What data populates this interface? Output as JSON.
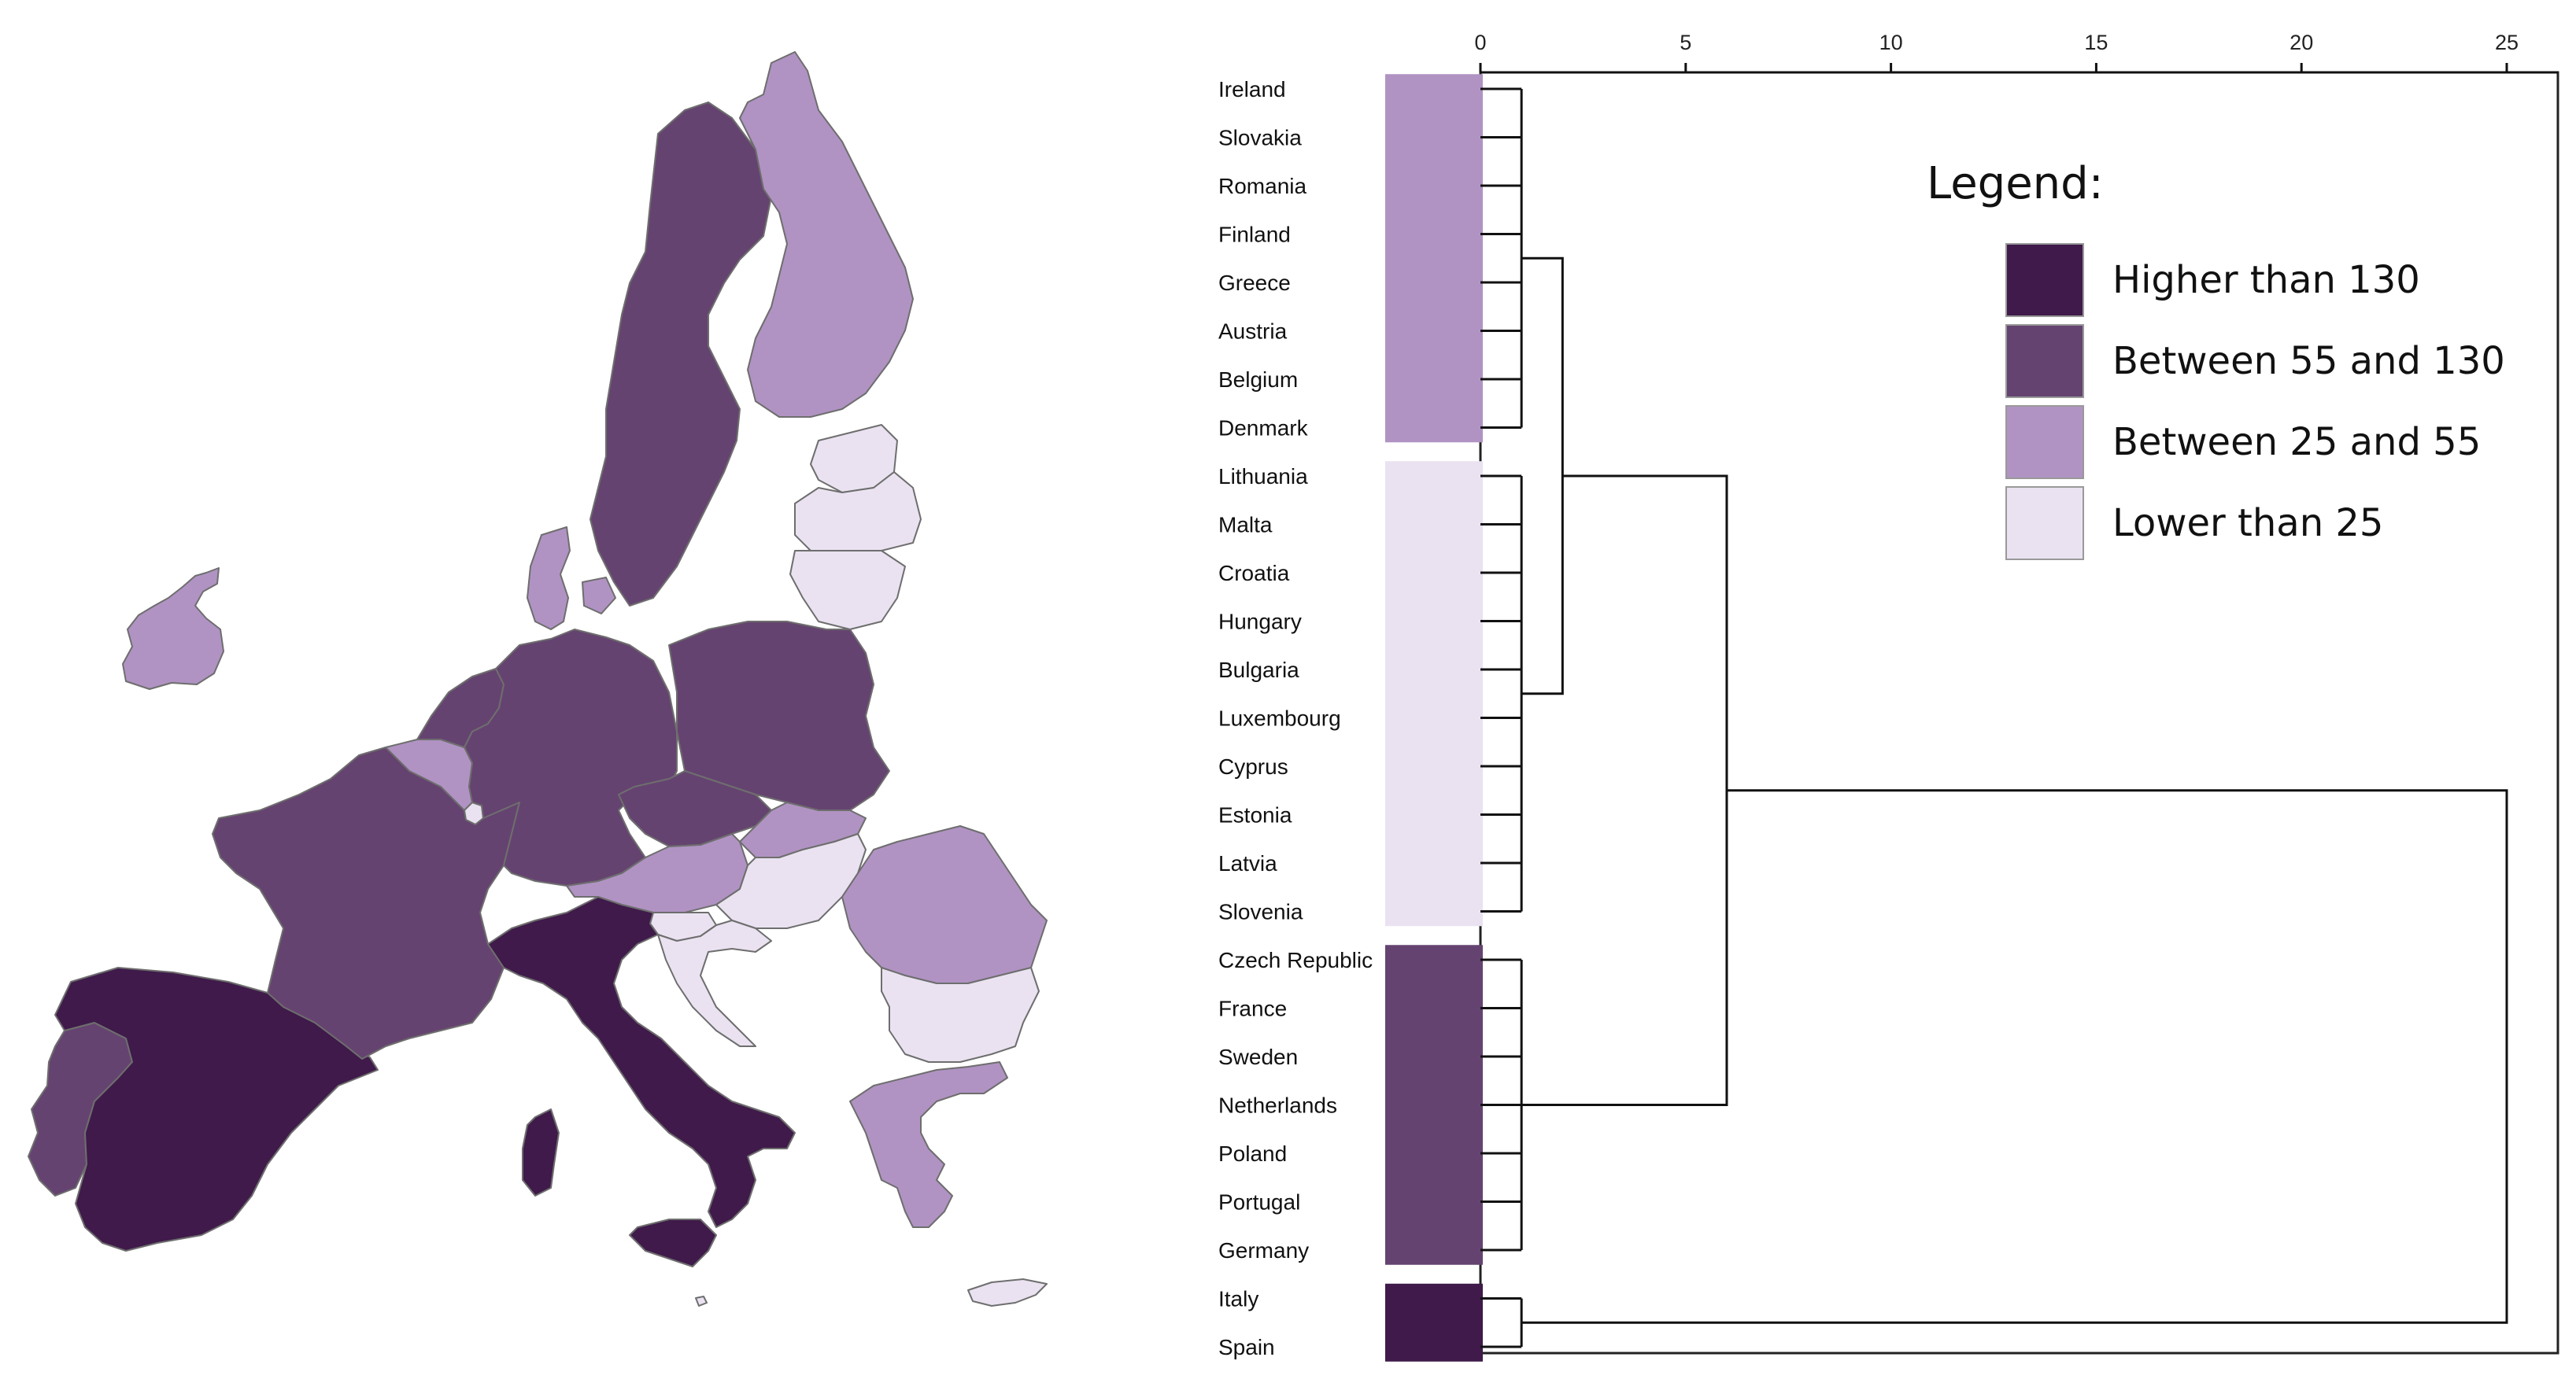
{
  "colors": {
    "higher_than_130": "#3f1a4a",
    "between_55_and_130": "#654370",
    "between_25_and_55": "#b093c3",
    "lower_than_25": "#eae2f1",
    "border": "#6e6e6e",
    "line": "#111111"
  },
  "map": {
    "countries": [
      {
        "name": "Ireland",
        "class": "between_25_and_55"
      },
      {
        "name": "Portugal",
        "class": "between_55_and_130"
      },
      {
        "name": "Spain",
        "class": "higher_than_130"
      },
      {
        "name": "France",
        "class": "between_55_and_130"
      },
      {
        "name": "Italy",
        "class": "higher_than_130"
      },
      {
        "name": "Belgium",
        "class": "between_25_and_55"
      },
      {
        "name": "Netherlands",
        "class": "between_55_and_130"
      },
      {
        "name": "Luxembourg",
        "class": "lower_than_25"
      },
      {
        "name": "Germany",
        "class": "between_55_and_130"
      },
      {
        "name": "Denmark",
        "class": "between_25_and_55"
      },
      {
        "name": "Sweden",
        "class": "between_55_and_130"
      },
      {
        "name": "Finland",
        "class": "between_25_and_55"
      },
      {
        "name": "Estonia",
        "class": "lower_than_25"
      },
      {
        "name": "Latvia",
        "class": "lower_than_25"
      },
      {
        "name": "Lithuania",
        "class": "lower_than_25"
      },
      {
        "name": "Poland",
        "class": "between_55_and_130"
      },
      {
        "name": "Czech Republic",
        "class": "between_55_and_130"
      },
      {
        "name": "Slovakia",
        "class": "between_25_and_55"
      },
      {
        "name": "Austria",
        "class": "between_25_and_55"
      },
      {
        "name": "Hungary",
        "class": "lower_than_25"
      },
      {
        "name": "Slovenia",
        "class": "lower_than_25"
      },
      {
        "name": "Croatia",
        "class": "lower_than_25"
      },
      {
        "name": "Romania",
        "class": "between_25_and_55"
      },
      {
        "name": "Bulgaria",
        "class": "lower_than_25"
      },
      {
        "name": "Greece",
        "class": "between_25_and_55"
      },
      {
        "name": "Cyprus",
        "class": "lower_than_25"
      },
      {
        "name": "Malta",
        "class": "lower_than_25"
      }
    ]
  },
  "dendrogram": {
    "axis": {
      "ticks": [
        "0",
        "5",
        "10",
        "15",
        "20",
        "25"
      ],
      "min": 0,
      "max": 25
    },
    "leaves": [
      {
        "name": "Ireland",
        "class": "between_25_and_55"
      },
      {
        "name": "Slovakia",
        "class": "between_25_and_55"
      },
      {
        "name": "Romania",
        "class": "between_25_and_55"
      },
      {
        "name": "Finland",
        "class": "between_25_and_55"
      },
      {
        "name": "Greece",
        "class": "between_25_and_55"
      },
      {
        "name": "Austria",
        "class": "between_25_and_55"
      },
      {
        "name": "Belgium",
        "class": "between_25_and_55"
      },
      {
        "name": "Denmark",
        "class": "between_25_and_55"
      },
      {
        "name": "Lithuania",
        "class": "lower_than_25"
      },
      {
        "name": "Malta",
        "class": "lower_than_25"
      },
      {
        "name": "Croatia",
        "class": "lower_than_25"
      },
      {
        "name": "Hungary",
        "class": "lower_than_25"
      },
      {
        "name": "Bulgaria",
        "class": "lower_than_25"
      },
      {
        "name": "Luxembourg",
        "class": "lower_than_25"
      },
      {
        "name": "Cyprus",
        "class": "lower_than_25"
      },
      {
        "name": "Estonia",
        "class": "lower_than_25"
      },
      {
        "name": "Latvia",
        "class": "lower_than_25"
      },
      {
        "name": "Slovenia",
        "class": "lower_than_25"
      },
      {
        "name": "Czech Republic",
        "class": "between_55_and_130"
      },
      {
        "name": "France",
        "class": "between_55_and_130"
      },
      {
        "name": "Sweden",
        "class": "between_55_and_130"
      },
      {
        "name": "Netherlands",
        "class": "between_55_and_130"
      },
      {
        "name": "Poland",
        "class": "between_55_and_130"
      },
      {
        "name": "Portugal",
        "class": "between_55_and_130"
      },
      {
        "name": "Germany",
        "class": "between_55_and_130"
      },
      {
        "name": "Italy",
        "class": "higher_than_130"
      },
      {
        "name": "Spain",
        "class": "higher_than_130"
      }
    ],
    "clusters": [
      {
        "leaves": [
          "Ireland",
          "Slovakia",
          "Romania",
          "Finland",
          "Greece",
          "Austria",
          "Belgium",
          "Denmark"
        ],
        "height": 1
      },
      {
        "leaves": [
          "Lithuania",
          "Malta",
          "Croatia",
          "Hungary",
          "Bulgaria",
          "Luxembourg",
          "Cyprus",
          "Estonia",
          "Latvia",
          "Slovenia"
        ],
        "height": 1
      },
      {
        "leaves": [
          "Czech Republic",
          "France",
          "Sweden",
          "Netherlands",
          "Poland",
          "Portugal",
          "Germany"
        ],
        "height": 1
      },
      {
        "leaves": [
          "Italy",
          "Spain"
        ],
        "height": 1
      }
    ],
    "merges": [
      {
        "a": 0,
        "b": 1,
        "height": 2
      },
      {
        "a": 4,
        "b": 2,
        "height": 6
      },
      {
        "a": 5,
        "b": 3,
        "height": 25
      }
    ]
  },
  "legend": {
    "title": "Legend:",
    "items": [
      {
        "label": "Higher than 130",
        "class": "higher_than_130"
      },
      {
        "label": "Between 55 and 130",
        "class": "between_55_and_130"
      },
      {
        "label": "Between 25 and 55",
        "class": "between_25_and_55"
      },
      {
        "label": "Lower than 25",
        "class": "lower_than_25"
      }
    ]
  }
}
